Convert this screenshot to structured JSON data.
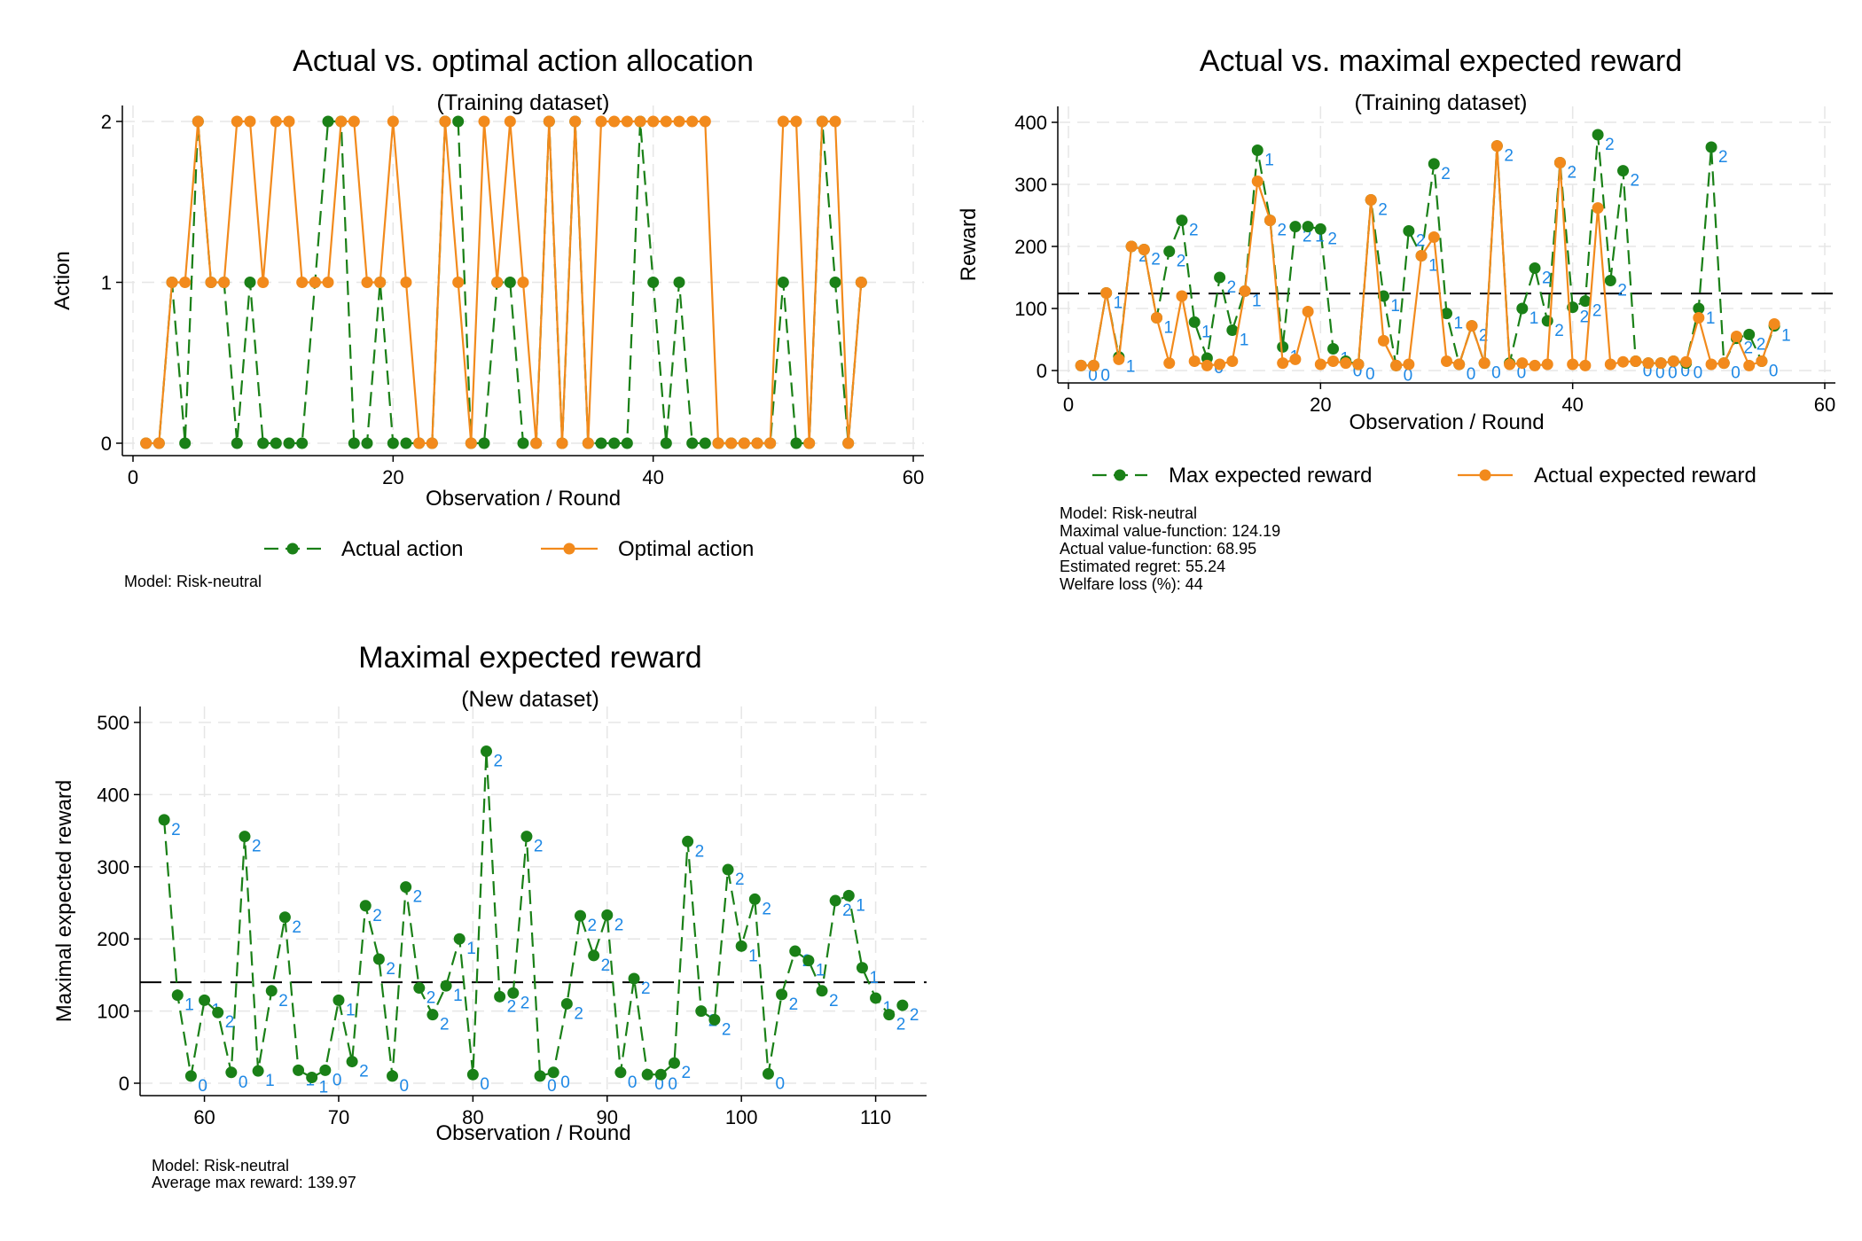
{
  "chart_data": [
    {
      "id": "p1",
      "type": "line",
      "title": "Actual vs. optimal action allocation",
      "subtitle": "(Training dataset)",
      "xlabel": "Observation / Round",
      "ylabel": "Action",
      "xlim": [
        0,
        60
      ],
      "ylim": [
        0,
        2
      ],
      "xticks": [
        0,
        20,
        40,
        60
      ],
      "yticks": [
        0,
        1,
        2
      ],
      "grid": true,
      "legend_position": "bottom",
      "legend": [
        "Actual action",
        "Optimal action"
      ],
      "note": [
        "Model: Risk-neutral"
      ],
      "series": [
        {
          "name": "Actual action",
          "color": "#1a8017",
          "dash": true,
          "x": [
            1,
            2,
            3,
            4,
            5,
            6,
            7,
            8,
            9,
            10,
            11,
            12,
            13,
            14,
            15,
            16,
            17,
            18,
            19,
            20,
            21,
            22,
            23,
            24,
            25,
            26,
            27,
            28,
            29,
            30,
            31,
            32,
            33,
            34,
            35,
            36,
            37,
            38,
            39,
            40,
            41,
            42,
            43,
            44,
            45,
            46,
            47,
            48,
            49,
            50,
            51,
            52,
            53,
            54,
            55,
            56
          ],
          "y": [
            0,
            0,
            1,
            0,
            2,
            1,
            1,
            0,
            1,
            0,
            0,
            0,
            0,
            1,
            2,
            2,
            0,
            0,
            1,
            0,
            0,
            0,
            0,
            2,
            2,
            0,
            0,
            1,
            1,
            0,
            0,
            2,
            0,
            2,
            0,
            0,
            0,
            0,
            2,
            1,
            0,
            1,
            0,
            0,
            0,
            0,
            0,
            0,
            0,
            1,
            0,
            0,
            2,
            1,
            0,
            1
          ]
        },
        {
          "name": "Optimal action",
          "color": "#f28a1c",
          "dash": false,
          "x": [
            1,
            2,
            3,
            4,
            5,
            6,
            7,
            8,
            9,
            10,
            11,
            12,
            13,
            14,
            15,
            16,
            17,
            18,
            19,
            20,
            21,
            22,
            23,
            24,
            25,
            26,
            27,
            28,
            29,
            30,
            31,
            32,
            33,
            34,
            35,
            36,
            37,
            38,
            39,
            40,
            41,
            42,
            43,
            44,
            45,
            46,
            47,
            48,
            49,
            50,
            51,
            52,
            53,
            54,
            55,
            56
          ],
          "y": [
            0,
            0,
            1,
            1,
            2,
            1,
            1,
            2,
            2,
            1,
            2,
            2,
            1,
            1,
            1,
            2,
            2,
            1,
            1,
            2,
            1,
            0,
            0,
            2,
            1,
            0,
            2,
            1,
            2,
            1,
            0,
            2,
            0,
            2,
            0,
            2,
            2,
            2,
            2,
            2,
            2,
            2,
            2,
            2,
            0,
            0,
            0,
            0,
            0,
            2,
            2,
            0,
            2,
            2,
            0,
            1
          ]
        }
      ]
    },
    {
      "id": "p2",
      "type": "line",
      "title": "Actual vs. maximal expected reward",
      "subtitle": "(Training dataset)",
      "xlabel": "Observation / Round",
      "ylabel": "Reward",
      "xlim": [
        0,
        60
      ],
      "ylim": [
        0,
        400
      ],
      "xticks": [
        0,
        20,
        40,
        60
      ],
      "yticks": [
        0,
        100,
        200,
        300,
        400
      ],
      "grid": true,
      "reference_line": 124.19,
      "legend_position": "bottom",
      "legend": [
        "Max expected reward",
        "Actual expected reward"
      ],
      "note": [
        "Model: Risk-neutral",
        "Maximal value-function: 124.19",
        "Actual value-function: 68.95",
        "Estimated regret: 55.24",
        "Welfare loss (%): 44"
      ],
      "series": [
        {
          "name": "Max expected reward",
          "color": "#1a8017",
          "dash": true,
          "x": [
            1,
            2,
            3,
            4,
            5,
            6,
            7,
            8,
            9,
            10,
            11,
            12,
            13,
            14,
            15,
            16,
            17,
            18,
            19,
            20,
            21,
            22,
            23,
            24,
            25,
            26,
            27,
            28,
            29,
            30,
            31,
            32,
            33,
            34,
            35,
            36,
            37,
            38,
            39,
            40,
            41,
            42,
            43,
            44,
            45,
            46,
            47,
            48,
            49,
            50,
            51,
            52,
            53,
            54,
            55,
            56
          ],
          "y": [
            8,
            8,
            125,
            22,
            200,
            195,
            85,
            192,
            242,
            78,
            20,
            150,
            65,
            128,
            355,
            242,
            38,
            232,
            232,
            228,
            35,
            15,
            10,
            275,
            120,
            8,
            225,
            185,
            333,
            92,
            10,
            72,
            12,
            362,
            12,
            100,
            165,
            80,
            335,
            102,
            112,
            380,
            145,
            322,
            15,
            12,
            12,
            15,
            12,
            100,
            360,
            12,
            52,
            58,
            15,
            72
          ],
          "labels": [
            "0",
            "0",
            "1",
            "1",
            "2",
            "2",
            "1",
            "2",
            "2",
            "1",
            "0",
            "2",
            "1",
            "1",
            "1",
            "2",
            "1",
            "2",
            "1",
            "2",
            "1",
            "0",
            "0",
            "2",
            "1",
            "0",
            "2",
            "1",
            "2",
            "1",
            "0",
            "2",
            "0",
            "2",
            "0",
            "1",
            "2",
            "2",
            "2",
            "2",
            "2",
            "2",
            "2",
            "2",
            "0",
            "0",
            "0",
            "0",
            "0",
            "1",
            "2",
            "0",
            "2",
            "2",
            "0",
            "1"
          ]
        },
        {
          "name": "Actual expected reward",
          "color": "#f28a1c",
          "dash": false,
          "x": [
            1,
            2,
            3,
            4,
            5,
            6,
            7,
            8,
            9,
            10,
            11,
            12,
            13,
            14,
            15,
            16,
            17,
            18,
            19,
            20,
            21,
            22,
            23,
            24,
            25,
            26,
            27,
            28,
            29,
            30,
            31,
            32,
            33,
            34,
            35,
            36,
            37,
            38,
            39,
            40,
            41,
            42,
            43,
            44,
            45,
            46,
            47,
            48,
            49,
            50,
            51,
            52,
            53,
            54,
            55,
            56
          ],
          "y": [
            8,
            8,
            125,
            18,
            200,
            195,
            85,
            12,
            120,
            15,
            8,
            10,
            15,
            128,
            305,
            242,
            12,
            18,
            95,
            10,
            15,
            12,
            10,
            275,
            48,
            8,
            10,
            185,
            215,
            15,
            10,
            72,
            12,
            362,
            10,
            12,
            8,
            10,
            335,
            10,
            8,
            262,
            10,
            14,
            15,
            12,
            12,
            15,
            14,
            85,
            10,
            12,
            55,
            8,
            15,
            75
          ]
        }
      ]
    },
    {
      "id": "p3",
      "type": "line",
      "title": "Maximal expected reward",
      "subtitle": "(New dataset)",
      "xlabel": "Observation / Round",
      "ylabel": "Maximal expected reward",
      "xlim": [
        56,
        113
      ],
      "ylim": [
        0,
        500
      ],
      "xticks": [
        60,
        70,
        80,
        90,
        100,
        110
      ],
      "yticks": [
        0,
        100,
        200,
        300,
        400,
        500
      ],
      "grid": true,
      "reference_line": 139.97,
      "note": [
        "Model: Risk-neutral",
        "Average max reward: 139.97"
      ],
      "series": [
        {
          "name": "Maximal expected reward",
          "color": "#1a8017",
          "dash": true,
          "x": [
            57,
            58,
            59,
            60,
            61,
            62,
            63,
            64,
            65,
            66,
            67,
            68,
            69,
            70,
            71,
            72,
            73,
            74,
            75,
            76,
            77,
            78,
            79,
            80,
            81,
            82,
            83,
            84,
            85,
            86,
            87,
            88,
            89,
            90,
            91,
            92,
            93,
            94,
            95,
            96,
            97,
            98,
            99,
            100,
            101,
            102,
            103,
            104,
            105,
            106,
            107,
            108,
            109,
            110,
            111,
            112
          ],
          "y": [
            365,
            122,
            10,
            115,
            98,
            15,
            342,
            17,
            128,
            230,
            18,
            8,
            18,
            115,
            30,
            246,
            172,
            10,
            272,
            132,
            95,
            135,
            200,
            12,
            460,
            120,
            125,
            342,
            10,
            15,
            110,
            232,
            177,
            233,
            15,
            145,
            12,
            12,
            28,
            335,
            100,
            88,
            296,
            190,
            255,
            13,
            123,
            183,
            170,
            128,
            253,
            260,
            160,
            118,
            95,
            108
          ],
          "labels": [
            "2",
            "1",
            "0",
            "1",
            "2",
            "0",
            "2",
            "1",
            "2",
            "2",
            "1",
            "1",
            "0",
            "1",
            "2",
            "2",
            "2",
            "0",
            "2",
            "2",
            "2",
            "1",
            "1",
            "0",
            "2",
            "2",
            "2",
            "2",
            "0",
            "0",
            "2",
            "2",
            "2",
            "2",
            "0",
            "2",
            "0",
            "0",
            "2",
            "2",
            "2",
            "2",
            "2",
            "1",
            "2",
            "0",
            "2",
            "2",
            "1",
            "2",
            "2",
            "1",
            "1",
            "1",
            "2",
            "2"
          ]
        }
      ]
    }
  ]
}
